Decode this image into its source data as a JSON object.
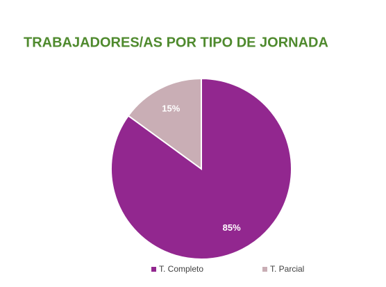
{
  "chart_data": {
    "type": "pie",
    "title": "TRABAJADORES/AS POR TIPO DE JORNADA",
    "categories": [
      "T. Completo",
      "T. Parcial"
    ],
    "values": [
      85,
      15
    ],
    "value_labels": [
      "85%",
      "15%"
    ],
    "colors": [
      "#92278f",
      "#c9aeb5"
    ]
  }
}
